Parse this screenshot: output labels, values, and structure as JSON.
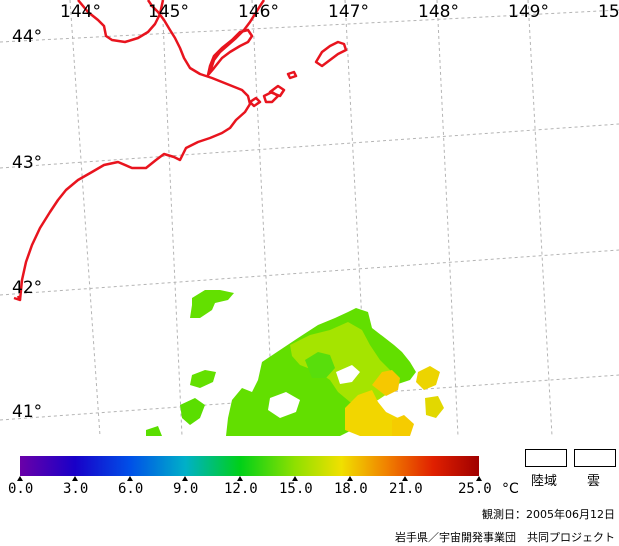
{
  "map": {
    "longitude_labels": [
      "144°",
      "145°",
      "146°",
      "147°",
      "148°",
      "149°",
      "15"
    ],
    "latitude_labels": [
      "44°",
      "43°",
      "42°",
      "41°"
    ],
    "coastline_color": "#e8141e",
    "grid_color": "#b4b4b4",
    "sst_description_colors": [
      "#5fe000",
      "#c8e600",
      "#ffd200"
    ]
  },
  "legend": {
    "ticks": [
      "0.0",
      "3.0",
      "6.0",
      "9.0",
      "12.0",
      "15.0",
      "18.0",
      "21.0",
      "25.0"
    ],
    "unit": "°C",
    "land_label": "陸域",
    "cloud_label": "雲"
  },
  "footer": {
    "observation_date": "観測日：2005年06月12日",
    "credit": "岩手県／宇宙開発事業団　共同プロジェクト"
  }
}
